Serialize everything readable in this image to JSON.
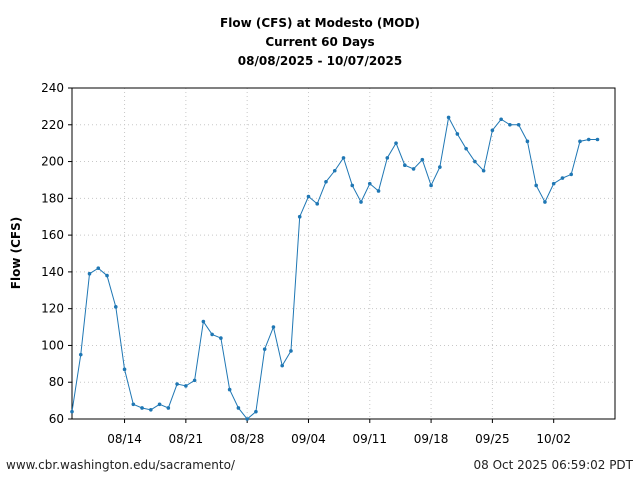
{
  "chart_data": {
    "type": "line",
    "title": "Flow (CFS) at Modesto (MOD)",
    "subtitle": "Current 60 Days",
    "date_range": "08/08/2025 - 10/07/2025",
    "xlabel": "",
    "ylabel": "Flow (CFS)",
    "ylim": [
      60,
      240
    ],
    "yticks": [
      60,
      80,
      100,
      120,
      140,
      160,
      180,
      200,
      220,
      240
    ],
    "xlim": [
      "2025-08-08",
      "2025-10-09"
    ],
    "xtick_labels": [
      "08/14",
      "08/21",
      "08/28",
      "09/04",
      "09/11",
      "09/18",
      "09/25",
      "10/02"
    ],
    "xtick_dates": [
      "2025-08-14",
      "2025-08-21",
      "2025-08-28",
      "2025-09-04",
      "2025-09-11",
      "2025-09-18",
      "2025-09-25",
      "2025-10-02"
    ],
    "grid": true,
    "line_color": "#1f77b4",
    "series": [
      {
        "name": "",
        "x": [
          "2025-08-08",
          "2025-08-09",
          "2025-08-10",
          "2025-08-11",
          "2025-08-12",
          "2025-08-13",
          "2025-08-14",
          "2025-08-15",
          "2025-08-16",
          "2025-08-17",
          "2025-08-18",
          "2025-08-19",
          "2025-08-20",
          "2025-08-21",
          "2025-08-22",
          "2025-08-23",
          "2025-08-24",
          "2025-08-25",
          "2025-08-26",
          "2025-08-27",
          "2025-08-28",
          "2025-08-29",
          "2025-08-30",
          "2025-08-31",
          "2025-09-01",
          "2025-09-02",
          "2025-09-03",
          "2025-09-04",
          "2025-09-05",
          "2025-09-06",
          "2025-09-07",
          "2025-09-08",
          "2025-09-09",
          "2025-09-10",
          "2025-09-11",
          "2025-09-12",
          "2025-09-13",
          "2025-09-14",
          "2025-09-15",
          "2025-09-16",
          "2025-09-17",
          "2025-09-18",
          "2025-09-19",
          "2025-09-20",
          "2025-09-21",
          "2025-09-22",
          "2025-09-23",
          "2025-09-24",
          "2025-09-25",
          "2025-09-26",
          "2025-09-27",
          "2025-09-28",
          "2025-09-29",
          "2025-09-30",
          "2025-10-01",
          "2025-10-02",
          "2025-10-03",
          "2025-10-04",
          "2025-10-05",
          "2025-10-06",
          "2025-10-07"
        ],
        "values": [
          64,
          95,
          139,
          142,
          138,
          121,
          87,
          68,
          66,
          65,
          68,
          66,
          79,
          78,
          81,
          113,
          106,
          104,
          76,
          66,
          60,
          64,
          98,
          110,
          89,
          97,
          170,
          181,
          177,
          189,
          195,
          202,
          187,
          178,
          188,
          184,
          202,
          210,
          198,
          196,
          201,
          187,
          197,
          224,
          215,
          207,
          200,
          195,
          217,
          223,
          220,
          220,
          211,
          187,
          178,
          188,
          191,
          193,
          211,
          212,
          212
        ]
      }
    ]
  },
  "footer": {
    "source_url": "www.cbr.washington.edu/sacramento/",
    "generated": "08 Oct 2025 06:59:02 PDT"
  }
}
